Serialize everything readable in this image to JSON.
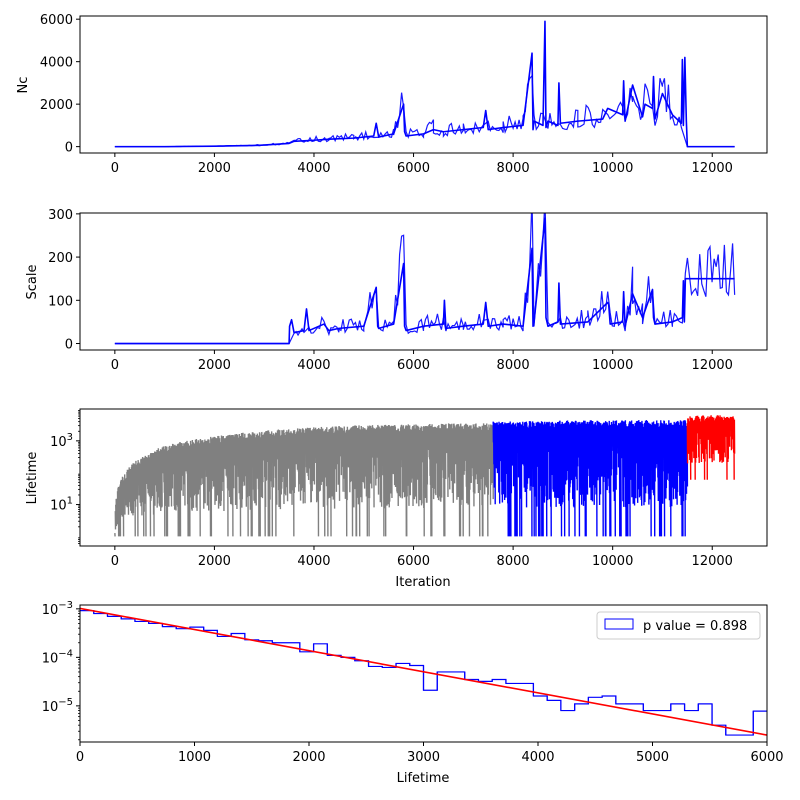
{
  "chart_data": [
    {
      "type": "line",
      "ylabel": "Nc",
      "xlabel": "",
      "xlim": [
        -700,
        13100
      ],
      "ylim": [
        -300,
        6150
      ],
      "xticks": [
        0,
        2000,
        4000,
        6000,
        8000,
        10000,
        12000
      ],
      "yticks": [
        0,
        2000,
        4000,
        6000
      ],
      "color": "#0000ff",
      "x": [
        0,
        1000,
        2000,
        2900,
        3500,
        3600,
        4000,
        4300,
        4800,
        5200,
        5250,
        5300,
        5600,
        5800,
        5820,
        5850,
        6200,
        6400,
        6600,
        7000,
        7400,
        7450,
        7500,
        7800,
        8200,
        8380,
        8400,
        8420,
        8600,
        8640,
        8660,
        8700,
        8900,
        8920,
        8950,
        9300,
        9800,
        9900,
        10200,
        10220,
        10250,
        10400,
        10600,
        10650,
        10800,
        10820,
        10850,
        11000,
        11200,
        11380,
        11400,
        11420,
        11450,
        11480,
        11500,
        12000,
        12450
      ],
      "y": [
        0,
        0,
        20,
        60,
        150,
        250,
        300,
        350,
        400,
        500,
        1100,
        450,
        600,
        2000,
        700,
        500,
        600,
        800,
        700,
        800,
        900,
        1700,
        800,
        900,
        1000,
        4400,
        800,
        1200,
        1000,
        5900,
        900,
        1200,
        1000,
        3000,
        1100,
        1200,
        1300,
        1800,
        1500,
        3100,
        1200,
        2900,
        1400,
        2000,
        1800,
        3300,
        1300,
        2500,
        1500,
        1100,
        4100,
        1000,
        4200,
        1200,
        0,
        0,
        0
      ]
    },
    {
      "type": "line",
      "ylabel": "Scale",
      "xlabel": "",
      "xlim": [
        -700,
        13100
      ],
      "ylim": [
        -15,
        302
      ],
      "xticks": [
        0,
        2000,
        4000,
        6000,
        8000,
        10000,
        12000
      ],
      "yticks": [
        0,
        100,
        200,
        300
      ],
      "color": "#0000ff",
      "x": [
        0,
        3500,
        3510,
        3550,
        3600,
        3800,
        3850,
        3900,
        4200,
        4300,
        4500,
        5000,
        5250,
        5280,
        5300,
        5600,
        5800,
        5820,
        5850,
        6200,
        6600,
        6620,
        6650,
        7000,
        7400,
        7450,
        7500,
        7800,
        8200,
        8380,
        8400,
        8420,
        8640,
        8660,
        8700,
        8900,
        8920,
        8950,
        9500,
        9900,
        9920,
        9950,
        10200,
        10220,
        10250,
        10400,
        10600,
        10800,
        10820,
        10850,
        11200,
        11400,
        11420,
        11440,
        11460,
        12450
      ],
      "y": [
        0,
        0,
        40,
        55,
        25,
        30,
        80,
        30,
        45,
        30,
        35,
        40,
        130,
        40,
        35,
        45,
        185,
        40,
        30,
        40,
        45,
        100,
        35,
        40,
        45,
        95,
        40,
        45,
        40,
        220,
        40,
        50,
        290,
        60,
        40,
        50,
        140,
        45,
        50,
        95,
        90,
        45,
        50,
        120,
        40,
        115,
        60,
        125,
        60,
        45,
        50,
        60,
        145,
        50,
        150,
        150
      ]
    },
    {
      "type": "line",
      "ylabel": "Lifetime",
      "xlabel": "Iteration",
      "yscale": "log",
      "xlim": [
        -700,
        13100
      ],
      "ylim": [
        0.5,
        10000
      ],
      "xticks": [
        0,
        2000,
        4000,
        6000,
        8000,
        10000,
        12000
      ],
      "yticks": [
        10,
        1000
      ],
      "yticklabels": [
        "10^1",
        "10^3"
      ],
      "segments": [
        {
          "color": "#808080",
          "x_range": [
            0,
            7600
          ],
          "envelope_x": [
            0,
            200,
            600,
            1000,
            2000,
            3000,
            4000,
            5000,
            6000,
            7000,
            7600
          ],
          "envelope_top": [
            2,
            100,
            350,
            700,
            1400,
            2100,
            2700,
            3100,
            3400,
            3600,
            3600
          ],
          "noise_floor": 1
        },
        {
          "color": "#0000ff",
          "x_range": [
            7600,
            11500
          ],
          "envelope_x": [
            7600,
            8500,
            9500,
            10500,
            11500
          ],
          "envelope_top": [
            4000,
            4200,
            4500,
            4500,
            4500
          ],
          "noise_floor": 1
        },
        {
          "color": "#ff0000",
          "x_range": [
            11500,
            12450
          ],
          "envelope_x": [
            11500,
            12000,
            12450
          ],
          "envelope_top": [
            6000,
            6500,
            6000
          ],
          "noise_floor": 60
        }
      ]
    },
    {
      "type": "histogram",
      "ylabel": "",
      "xlabel": "Lifetime",
      "yscale": "log",
      "xlim": [
        0,
        6000
      ],
      "ylim": [
        1.8e-06,
        0.0012
      ],
      "xticks": [
        0,
        1000,
        2000,
        3000,
        4000,
        5000,
        6000
      ],
      "yticks": [
        1e-05,
        0.0001,
        0.001
      ],
      "yticklabels": [
        "10^-5",
        "10^-4",
        "10^-3"
      ],
      "bin_edges": [
        0,
        120,
        240,
        360,
        480,
        600,
        720,
        840,
        960,
        1080,
        1200,
        1320,
        1440,
        1560,
        1680,
        1800,
        1920,
        2040,
        2160,
        2280,
        2400,
        2520,
        2640,
        2760,
        2880,
        3000,
        3120,
        3240,
        3360,
        3480,
        3600,
        3720,
        3840,
        3960,
        4080,
        4200,
        4320,
        4440,
        4560,
        4680,
        4800,
        4920,
        5040,
        5160,
        5280,
        5400,
        5520,
        5640,
        5760,
        5880,
        6000
      ],
      "counts": [
        0.00092,
        0.0008,
        0.0007,
        0.00062,
        0.00055,
        0.0005,
        0.00043,
        0.00039,
        0.00042,
        0.00036,
        0.00027,
        0.00031,
        0.00023,
        0.00022,
        0.0002,
        0.0002,
        0.00013,
        0.00019,
        0.00011,
        0.0001,
        8.5e-05,
        6.5e-05,
        6.2e-05,
        7.5e-05,
        6.8e-05,
        2.1e-05,
        5e-05,
        5e-05,
        3.5e-05,
        3.2e-05,
        3.5e-05,
        2.9e-05,
        2.9e-05,
        1.6e-05,
        1.3e-05,
        8e-06,
        1.1e-05,
        1.5e-05,
        1.6e-05,
        1.1e-05,
        1.1e-05,
        8e-06,
        8e-06,
        1.1e-05,
        8e-06,
        1.1e-05,
        4e-06,
        2.5e-06,
        2.5e-06,
        7.8e-06
      ],
      "hist_color": "#0000ff",
      "fit": {
        "color": "#ff0000",
        "x": [
          0,
          6000
        ],
        "y": [
          0.00102,
          2.5e-06
        ]
      },
      "legend": {
        "label": "p value = 0.898",
        "loc": "upper right"
      }
    }
  ]
}
